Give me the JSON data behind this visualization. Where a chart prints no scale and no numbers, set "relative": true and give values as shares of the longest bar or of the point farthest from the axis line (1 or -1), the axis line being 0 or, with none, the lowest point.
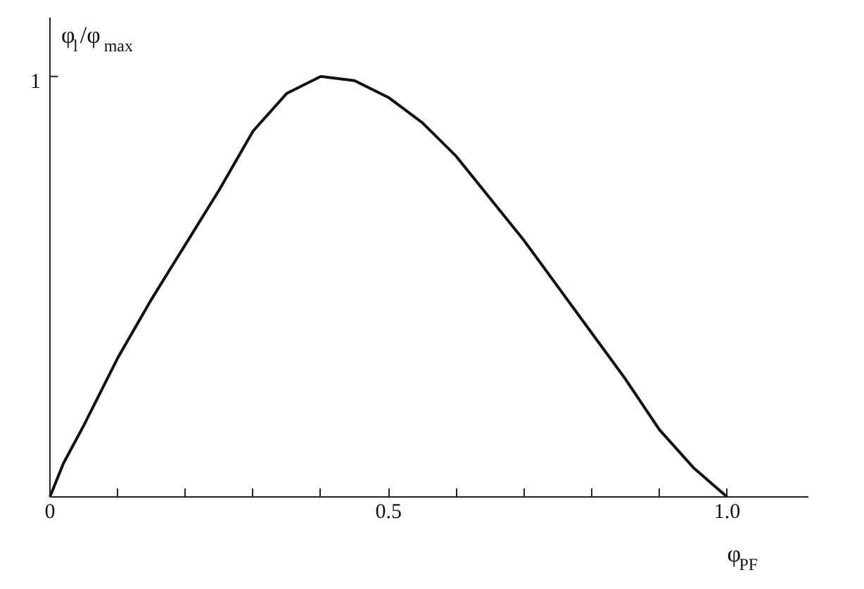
{
  "chart_data": {
    "type": "line",
    "xlabel": "φ$_{PF}$",
    "ylabel": "φ$_{l}$/φ$_{max}$",
    "x": [
      0,
      0.02,
      0.05,
      0.1,
      0.15,
      0.2,
      0.25,
      0.3,
      0.35,
      0.4,
      0.45,
      0.5,
      0.55,
      0.6,
      0.65,
      0.7,
      0.75,
      0.8,
      0.85,
      0.9,
      0.95,
      1.0
    ],
    "series": [
      {
        "color": "#111111",
        "values": [
          0,
          0.08,
          0.17,
          0.33,
          0.47,
          0.6,
          0.73,
          0.87,
          0.96,
          1,
          0.99,
          0.95,
          0.89,
          0.81,
          0.71,
          0.61,
          0.5,
          0.39,
          0.28,
          0.16,
          0.07,
          0
        ]
      }
    ],
    "relative": true,
    "annotations": [
      "1"
    ],
    "xlim": [
      0,
      1.12
    ],
    "xticks": [
      0,
      {
        "value": 0.1,
        "label": null
      },
      {
        "value": 0.2,
        "label": null
      },
      {
        "value": 0.3,
        "label": null
      },
      {
        "value": 0.4,
        "label": null
      },
      0.5,
      {
        "value": 0.6,
        "label": null
      },
      {
        "value": 0.7,
        "label": null
      },
      {
        "value": 0.8,
        "label": null
      },
      {
        "value": 0.9,
        "label": null
      },
      {
        "value": 1.0,
        "label": "1.0"
      }
    ],
    "grid": false,
    "marker": "none",
    "line_style": "solid"
  }
}
